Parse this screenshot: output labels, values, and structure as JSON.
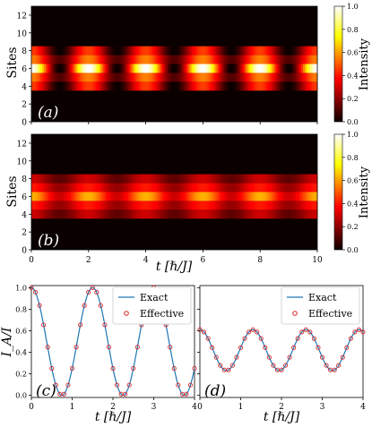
{
  "chart_data": [
    {
      "panel": "(a)",
      "type": "heatmap",
      "ylabel": "Sites",
      "xlim": [
        0,
        10
      ],
      "ylim": [
        0,
        13
      ],
      "y_ticks": [
        "0",
        "2",
        "4",
        "6",
        "8",
        "10",
        "12"
      ],
      "rows": [
        {
          "site": 4,
          "kind": "edge",
          "max": 0.45,
          "min": 0.0,
          "period": 2.0,
          "phase": 0.0
        },
        {
          "site": 5,
          "kind": "side",
          "max": 0.55,
          "min": 0.1,
          "period": 2.0,
          "phase": 0.0
        },
        {
          "site": 6,
          "kind": "center",
          "max": 1.0,
          "min": 0.0,
          "period": 2.0,
          "phase": 0.0
        },
        {
          "site": 7,
          "kind": "side",
          "max": 0.55,
          "min": 0.1,
          "period": 2.0,
          "phase": 0.0
        },
        {
          "site": 8,
          "kind": "edge",
          "max": 0.45,
          "min": 0.0,
          "period": 2.0,
          "phase": 0.0
        }
      ],
      "colorbar": {
        "label": "Intensity",
        "ticks": [
          "0.0",
          "0.2",
          "0.4",
          "0.6",
          "0.8",
          "1.0"
        ],
        "range": [
          0,
          1
        ]
      }
    },
    {
      "panel": "(b)",
      "type": "heatmap",
      "ylabel": "Sites",
      "xlabel": "t [ℏ/J]",
      "xlim": [
        0,
        10
      ],
      "ylim": [
        0,
        13
      ],
      "x_ticks": [
        "0",
        "2",
        "4",
        "6",
        "8",
        "10"
      ],
      "y_ticks": [
        "0",
        "2",
        "4",
        "6",
        "8",
        "10",
        "12"
      ],
      "rows": [
        {
          "site": 4,
          "kind": "edge",
          "max": 0.28,
          "min": 0.12,
          "period": 2.0,
          "phase": 0.0
        },
        {
          "site": 5,
          "kind": "side",
          "max": 0.4,
          "min": 0.2,
          "period": 2.0,
          "phase": 0.0
        },
        {
          "site": 6,
          "kind": "center",
          "max": 0.62,
          "min": 0.28,
          "period": 2.0,
          "phase": 0.0
        },
        {
          "site": 7,
          "kind": "side",
          "max": 0.4,
          "min": 0.2,
          "period": 2.0,
          "phase": 0.0
        },
        {
          "site": 8,
          "kind": "edge",
          "max": 0.28,
          "min": 0.12,
          "period": 2.0,
          "phase": 0.0
        }
      ],
      "colorbar": {
        "label": "Intensity",
        "ticks": [
          "0.0",
          "0.2",
          "0.4",
          "0.6",
          "0.8",
          "1.0"
        ],
        "range": [
          0,
          1
        ]
      }
    },
    {
      "panel": "(c)",
      "type": "line",
      "ylabel": "I_A/I",
      "xlabel": "t [ℏ/J]",
      "xlim": [
        0,
        4
      ],
      "ylim": [
        -0.02,
        1.02
      ],
      "x_ticks": [
        "0",
        "1",
        "2",
        "3",
        "4"
      ],
      "y_ticks": [
        "0.0",
        "0.2",
        "0.4",
        "0.6",
        "0.8",
        "1.0"
      ],
      "legend": {
        "position": "top-right",
        "entries": [
          "Exact",
          "Effective"
        ]
      },
      "series": [
        {
          "name": "Exact",
          "style": "line",
          "color": "#1f77b4",
          "model": {
            "mean": 0.5,
            "amp": 0.5,
            "period": 1.5
          }
        },
        {
          "name": "Effective",
          "style": "open-circle",
          "color": "#d62728",
          "model": {
            "mean": 0.5,
            "amp": 0.5,
            "period": 1.5
          },
          "x_step": 0.1
        }
      ]
    },
    {
      "panel": "(d)",
      "type": "line",
      "xlabel": "t [ℏ/J]",
      "xlim": [
        0,
        4
      ],
      "ylim": [
        -0.02,
        1.02
      ],
      "x_ticks": [
        "0",
        "1",
        "2",
        "3",
        "4"
      ],
      "legend": {
        "position": "top-right",
        "entries": [
          "Exact",
          "Effective"
        ]
      },
      "series": [
        {
          "name": "Exact",
          "style": "line",
          "color": "#1f77b4",
          "model": {
            "mean": 0.42,
            "amp": 0.19,
            "period": 1.3
          }
        },
        {
          "name": "Effective",
          "style": "open-circle",
          "color": "#d62728",
          "model": {
            "mean": 0.42,
            "amp": 0.19,
            "period": 1.3
          },
          "x_step": 0.1
        }
      ]
    }
  ]
}
